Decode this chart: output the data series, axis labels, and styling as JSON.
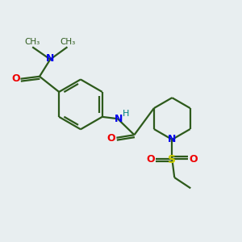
{
  "bg_color": "#e8eef0",
  "bond_color": "#2d5a1b",
  "atom_colors": {
    "N": "#0000ee",
    "O": "#ee0000",
    "S": "#cccc00",
    "H": "#008080",
    "C": "#2d5a1b"
  },
  "line_width": 1.6,
  "figsize": [
    3.0,
    3.0
  ],
  "dpi": 100,
  "xlim": [
    0,
    10
  ],
  "ylim": [
    0,
    10
  ]
}
